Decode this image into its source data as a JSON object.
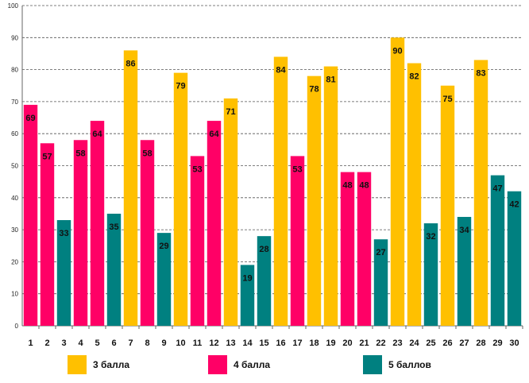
{
  "chart_data": {
    "type": "bar",
    "y_ticks": [
      "0",
      "10",
      "20",
      "30",
      "40",
      "50",
      "60",
      "70",
      "80",
      "90",
      "100"
    ],
    "ylim": [
      0,
      100
    ],
    "grid": true,
    "categories": [
      "1",
      "2",
      "3",
      "4",
      "5",
      "6",
      "7",
      "8",
      "9",
      "10",
      "11",
      "12",
      "13",
      "14",
      "15",
      "16",
      "17",
      "18",
      "19",
      "20",
      "21",
      "22",
      "23",
      "24",
      "25",
      "26",
      "27",
      "28",
      "29",
      "30"
    ],
    "values": [
      69,
      57,
      33,
      58,
      64,
      35,
      86,
      58,
      29,
      79,
      53,
      64,
      71,
      19,
      28,
      84,
      53,
      78,
      81,
      48,
      48,
      27,
      90,
      82,
      32,
      75,
      34,
      83,
      47,
      42
    ],
    "series_index": [
      "4 балла",
      "4 балла",
      "5 баллов",
      "4 балла",
      "4 балла",
      "5 баллов",
      "3 балла",
      "4 балла",
      "5 баллов",
      "3 балла",
      "4 балла",
      "4 балла",
      "3 балла",
      "5 баллов",
      "5 баллов",
      "3 балла",
      "4 балла",
      "3 балла",
      "3 балла",
      "4 балла",
      "4 балла",
      "5 баллов",
      "3 балла",
      "3 балла",
      "5 баллов",
      "3 балла",
      "5 баллов",
      "3 балла",
      "5 баллов",
      "5 баллов"
    ],
    "legend": [
      {
        "name": "3 балла",
        "color": "#FFC000"
      },
      {
        "name": "4 балла",
        "color": "#FF0066"
      },
      {
        "name": "5 баллов",
        "color": "#008080"
      }
    ],
    "legend_position": "bottom",
    "title": "",
    "xlabel": "",
    "ylabel": ""
  }
}
